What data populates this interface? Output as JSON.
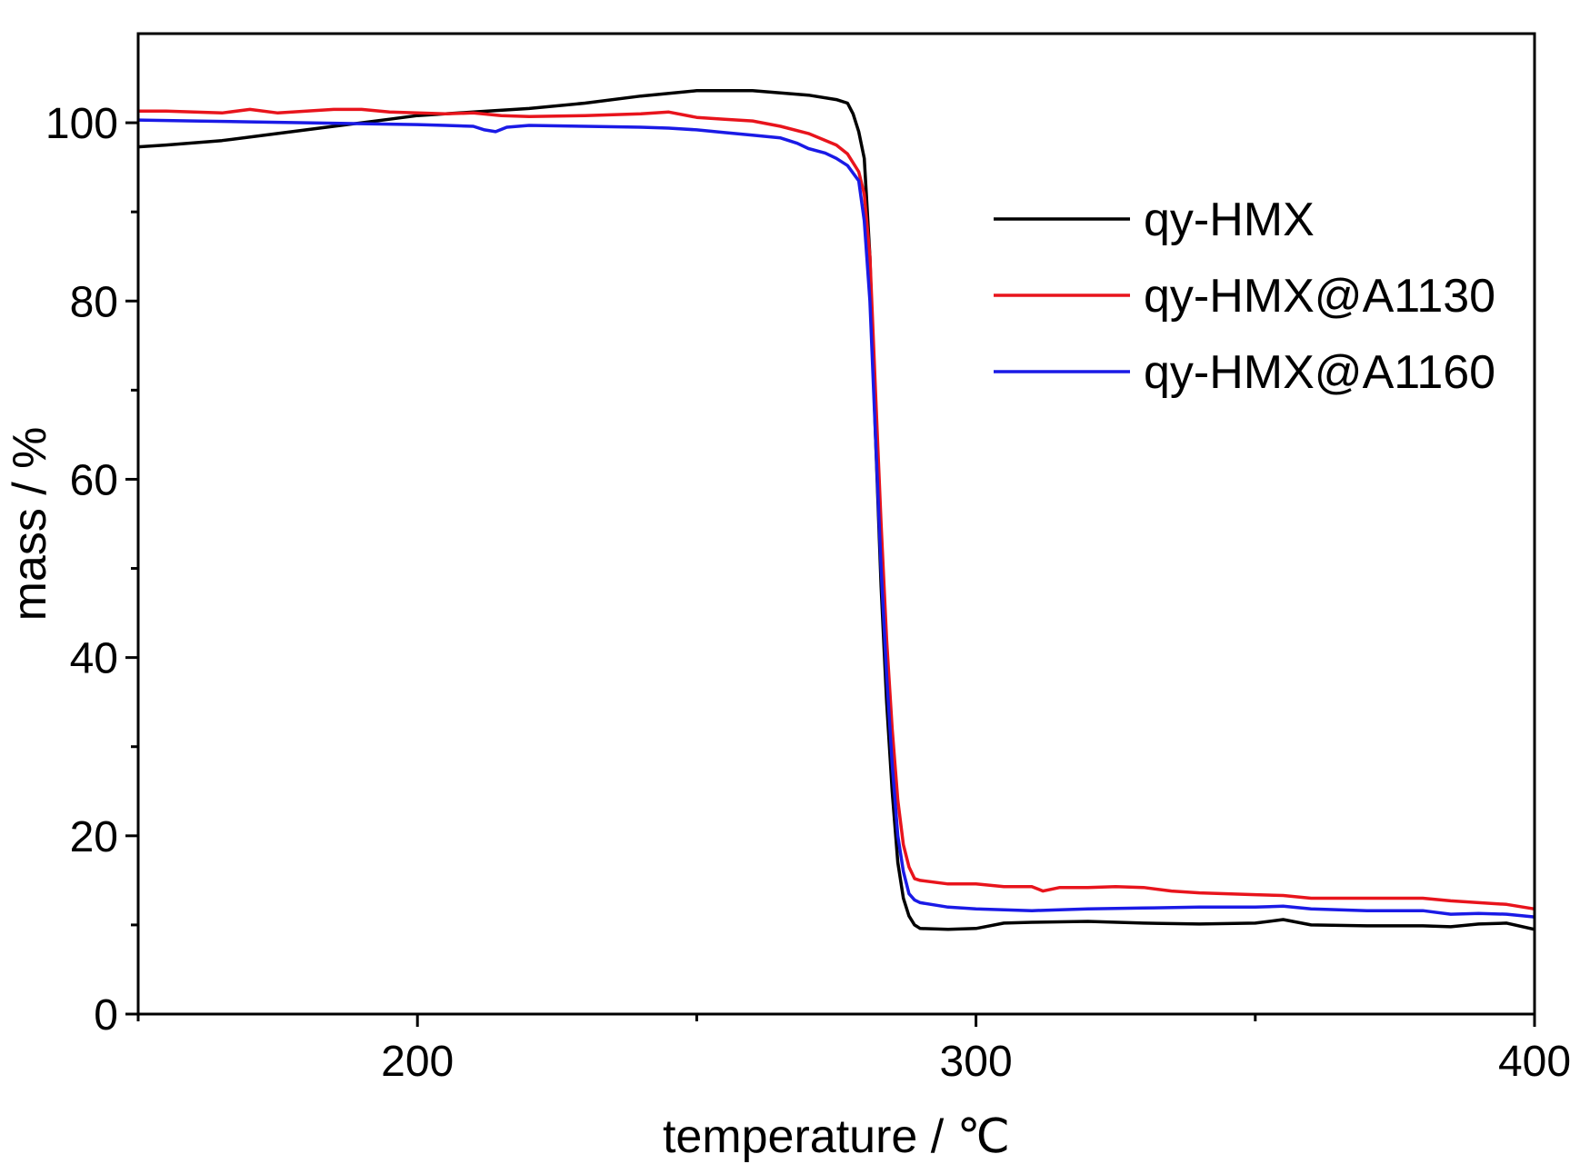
{
  "chart_data": {
    "type": "line",
    "title": "",
    "xlabel": "temperature / ℃",
    "ylabel": "mass / %",
    "xlim": [
      150,
      400
    ],
    "ylim": [
      0,
      110
    ],
    "xticks": [
      200,
      300,
      400
    ],
    "xtick_labels": [
      "200",
      "300",
      "400"
    ],
    "yticks": [
      0,
      20,
      40,
      60,
      80,
      100
    ],
    "ytick_labels": [
      "0",
      "20",
      "40",
      "60",
      "80",
      "100"
    ],
    "grid": false,
    "legend_position": "top-right",
    "series": [
      {
        "name": "qy-HMX",
        "color": "#000000",
        "points": [
          [
            150,
            97.3
          ],
          [
            155,
            97.5
          ],
          [
            165,
            98
          ],
          [
            175,
            98.8
          ],
          [
            185,
            99.6
          ],
          [
            195,
            100.4
          ],
          [
            200,
            100.8
          ],
          [
            210,
            101.2
          ],
          [
            220,
            101.6
          ],
          [
            230,
            102.2
          ],
          [
            240,
            103
          ],
          [
            250,
            103.6
          ],
          [
            260,
            103.6
          ],
          [
            270,
            103.1
          ],
          [
            275,
            102.6
          ],
          [
            277,
            102.2
          ],
          [
            278,
            101
          ],
          [
            279,
            99
          ],
          [
            280,
            96
          ],
          [
            281,
            85
          ],
          [
            282,
            65
          ],
          [
            283,
            48
          ],
          [
            284,
            35
          ],
          [
            285,
            25
          ],
          [
            286,
            17
          ],
          [
            287,
            13
          ],
          [
            288,
            11
          ],
          [
            289,
            10
          ],
          [
            290,
            9.6
          ],
          [
            295,
            9.5
          ],
          [
            300,
            9.6
          ],
          [
            305,
            10.2
          ],
          [
            310,
            10.3
          ],
          [
            320,
            10.4
          ],
          [
            330,
            10.2
          ],
          [
            340,
            10.1
          ],
          [
            350,
            10.2
          ],
          [
            355,
            10.6
          ],
          [
            360,
            10
          ],
          [
            370,
            9.9
          ],
          [
            380,
            9.9
          ],
          [
            385,
            9.8
          ],
          [
            390,
            10.1
          ],
          [
            395,
            10.2
          ],
          [
            400,
            9.5
          ]
        ]
      },
      {
        "name": "qy-HMX@A1130",
        "color": "#e8141c",
        "points": [
          [
            150,
            101.3
          ],
          [
            155,
            101.3
          ],
          [
            165,
            101.1
          ],
          [
            170,
            101.5
          ],
          [
            175,
            101.1
          ],
          [
            185,
            101.5
          ],
          [
            190,
            101.5
          ],
          [
            195,
            101.2
          ],
          [
            200,
            101.1
          ],
          [
            205,
            101
          ],
          [
            210,
            101.1
          ],
          [
            215,
            100.8
          ],
          [
            220,
            100.7
          ],
          [
            230,
            100.8
          ],
          [
            240,
            101
          ],
          [
            245,
            101.2
          ],
          [
            250,
            100.6
          ],
          [
            255,
            100.4
          ],
          [
            260,
            100.2
          ],
          [
            265,
            99.6
          ],
          [
            270,
            98.8
          ],
          [
            275,
            97.5
          ],
          [
            277,
            96.5
          ],
          [
            279,
            94.5
          ],
          [
            280,
            92
          ],
          [
            281,
            85
          ],
          [
            282,
            70
          ],
          [
            283,
            55
          ],
          [
            284,
            42
          ],
          [
            285,
            32
          ],
          [
            286,
            24
          ],
          [
            287,
            19
          ],
          [
            288,
            16.5
          ],
          [
            289,
            15.2
          ],
          [
            290,
            15
          ],
          [
            295,
            14.6
          ],
          [
            300,
            14.6
          ],
          [
            305,
            14.3
          ],
          [
            310,
            14.3
          ],
          [
            312,
            13.8
          ],
          [
            315,
            14.2
          ],
          [
            320,
            14.2
          ],
          [
            325,
            14.3
          ],
          [
            330,
            14.2
          ],
          [
            335,
            13.8
          ],
          [
            340,
            13.6
          ],
          [
            350,
            13.4
          ],
          [
            355,
            13.3
          ],
          [
            360,
            13
          ],
          [
            370,
            13
          ],
          [
            380,
            13
          ],
          [
            385,
            12.7
          ],
          [
            390,
            12.5
          ],
          [
            395,
            12.3
          ],
          [
            398,
            12
          ],
          [
            400,
            11.8
          ]
        ]
      },
      {
        "name": "qy-HMX@A1160",
        "color": "#1a1ae6",
        "points": [
          [
            150,
            100.3
          ],
          [
            160,
            100.2
          ],
          [
            170,
            100.1
          ],
          [
            180,
            100
          ],
          [
            190,
            99.9
          ],
          [
            200,
            99.8
          ],
          [
            205,
            99.7
          ],
          [
            210,
            99.6
          ],
          [
            212,
            99.2
          ],
          [
            214,
            99
          ],
          [
            216,
            99.5
          ],
          [
            220,
            99.7
          ],
          [
            230,
            99.6
          ],
          [
            240,
            99.5
          ],
          [
            245,
            99.4
          ],
          [
            250,
            99.2
          ],
          [
            255,
            98.9
          ],
          [
            260,
            98.6
          ],
          [
            265,
            98.3
          ],
          [
            268,
            97.7
          ],
          [
            270,
            97.1
          ],
          [
            273,
            96.6
          ],
          [
            275,
            96
          ],
          [
            277,
            95.2
          ],
          [
            279,
            93.5
          ],
          [
            280,
            89
          ],
          [
            281,
            80
          ],
          [
            282,
            65
          ],
          [
            283,
            50
          ],
          [
            284,
            38
          ],
          [
            285,
            28
          ],
          [
            286,
            20
          ],
          [
            287,
            16
          ],
          [
            288,
            13.5
          ],
          [
            289,
            12.8
          ],
          [
            290,
            12.5
          ],
          [
            295,
            12
          ],
          [
            300,
            11.8
          ],
          [
            310,
            11.6
          ],
          [
            320,
            11.8
          ],
          [
            330,
            11.9
          ],
          [
            340,
            12
          ],
          [
            350,
            12
          ],
          [
            355,
            12.1
          ],
          [
            360,
            11.8
          ],
          [
            370,
            11.6
          ],
          [
            380,
            11.6
          ],
          [
            385,
            11.2
          ],
          [
            390,
            11.3
          ],
          [
            395,
            11.2
          ],
          [
            400,
            10.9
          ]
        ]
      }
    ]
  }
}
